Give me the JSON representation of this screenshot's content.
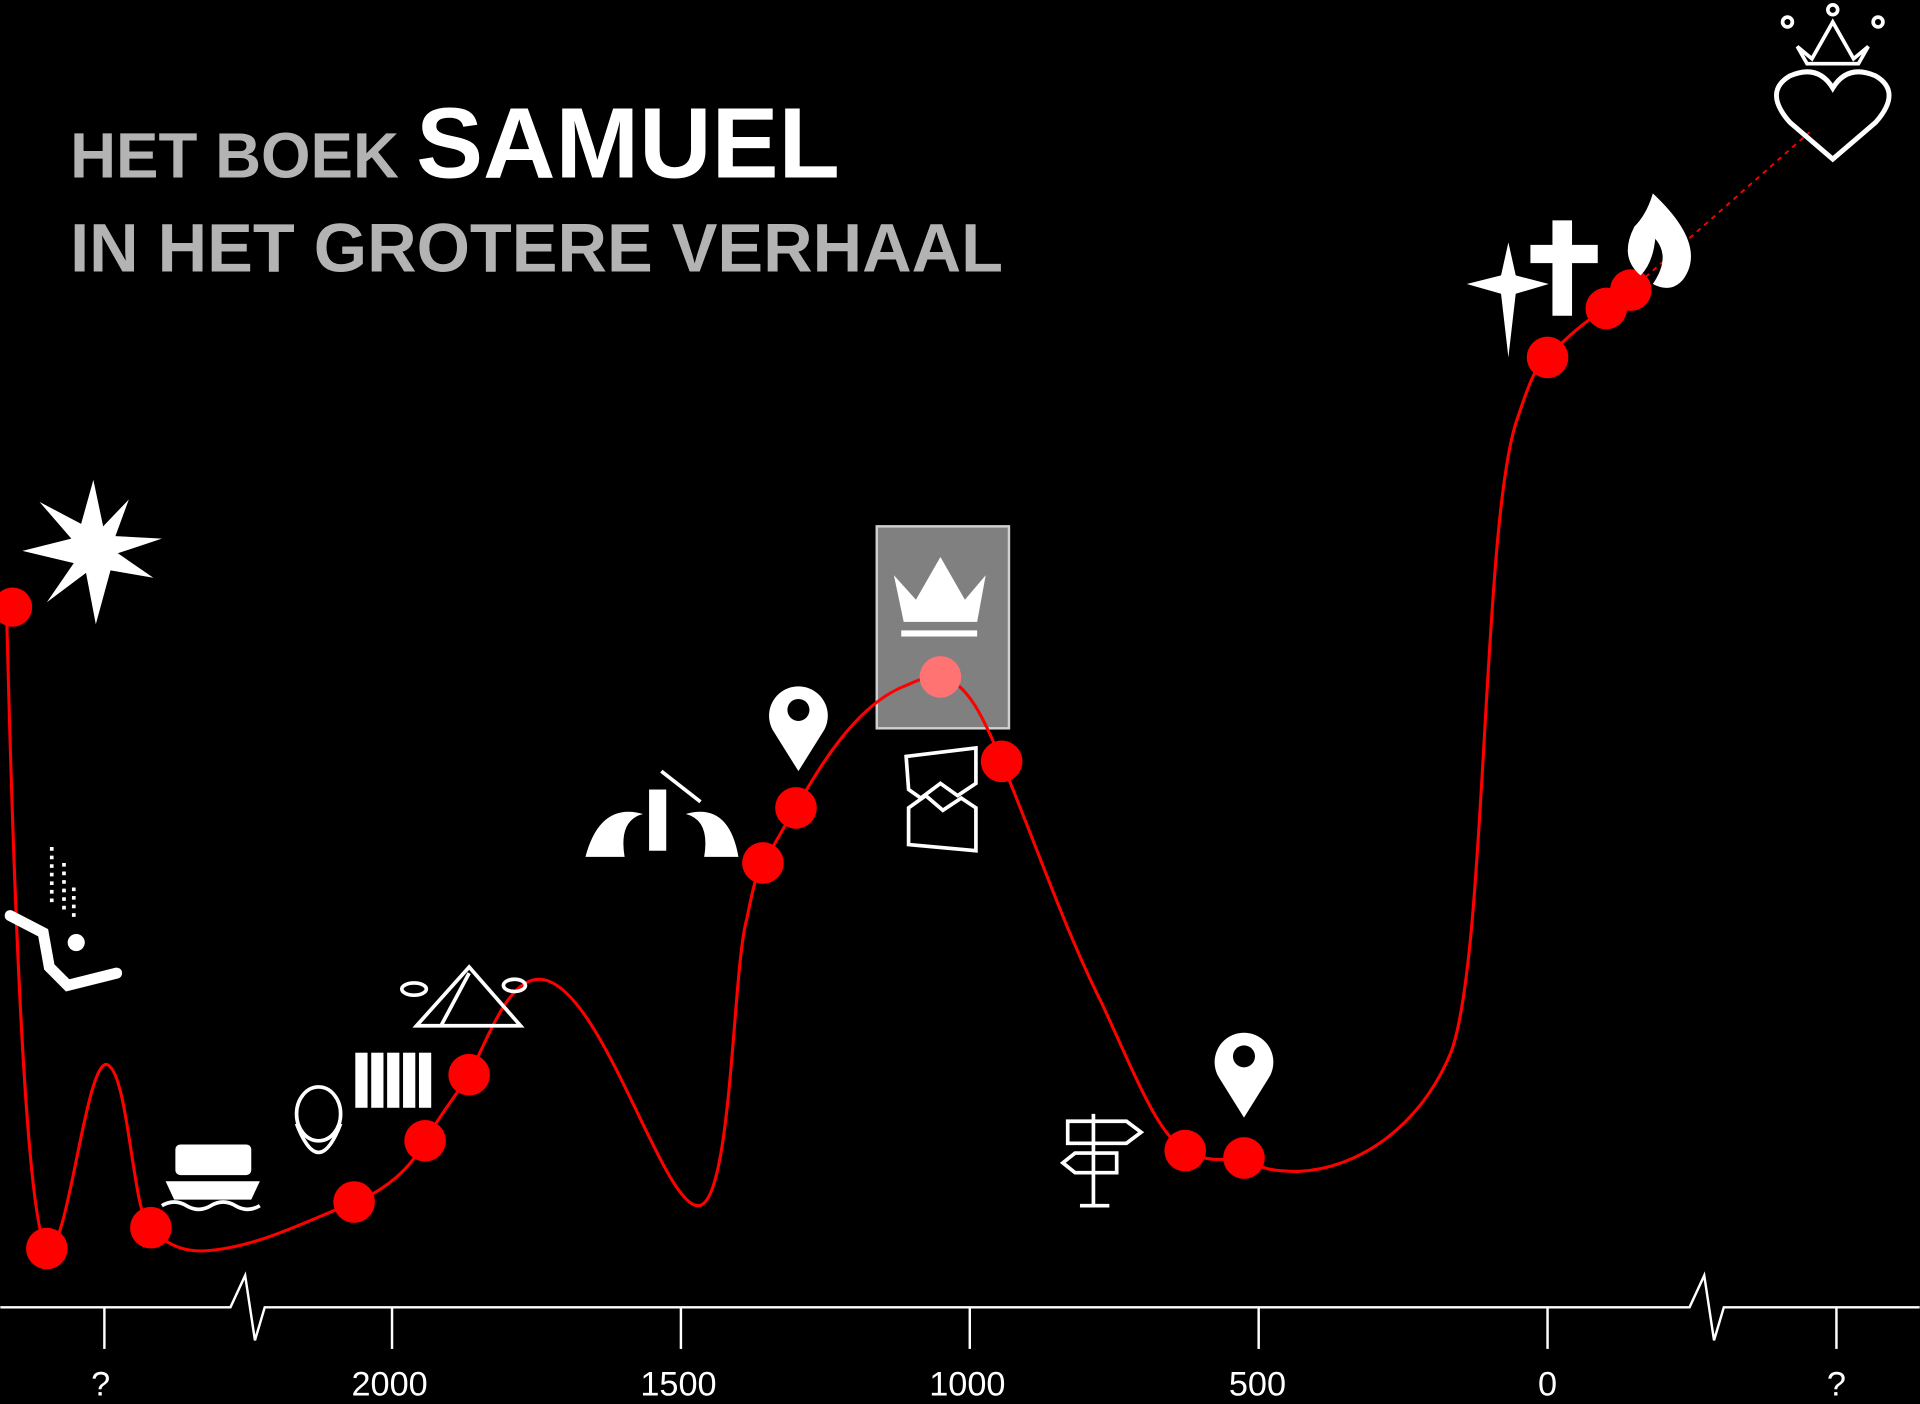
{
  "header": {
    "prefix": "HET BOEK",
    "title": "SAMUEL",
    "subtitle": "IN HET GROTERE VERHAAL"
  },
  "axis": {
    "labels": [
      "?",
      "2000",
      "1500",
      "1000",
      "500",
      "0",
      "?"
    ]
  }
}
